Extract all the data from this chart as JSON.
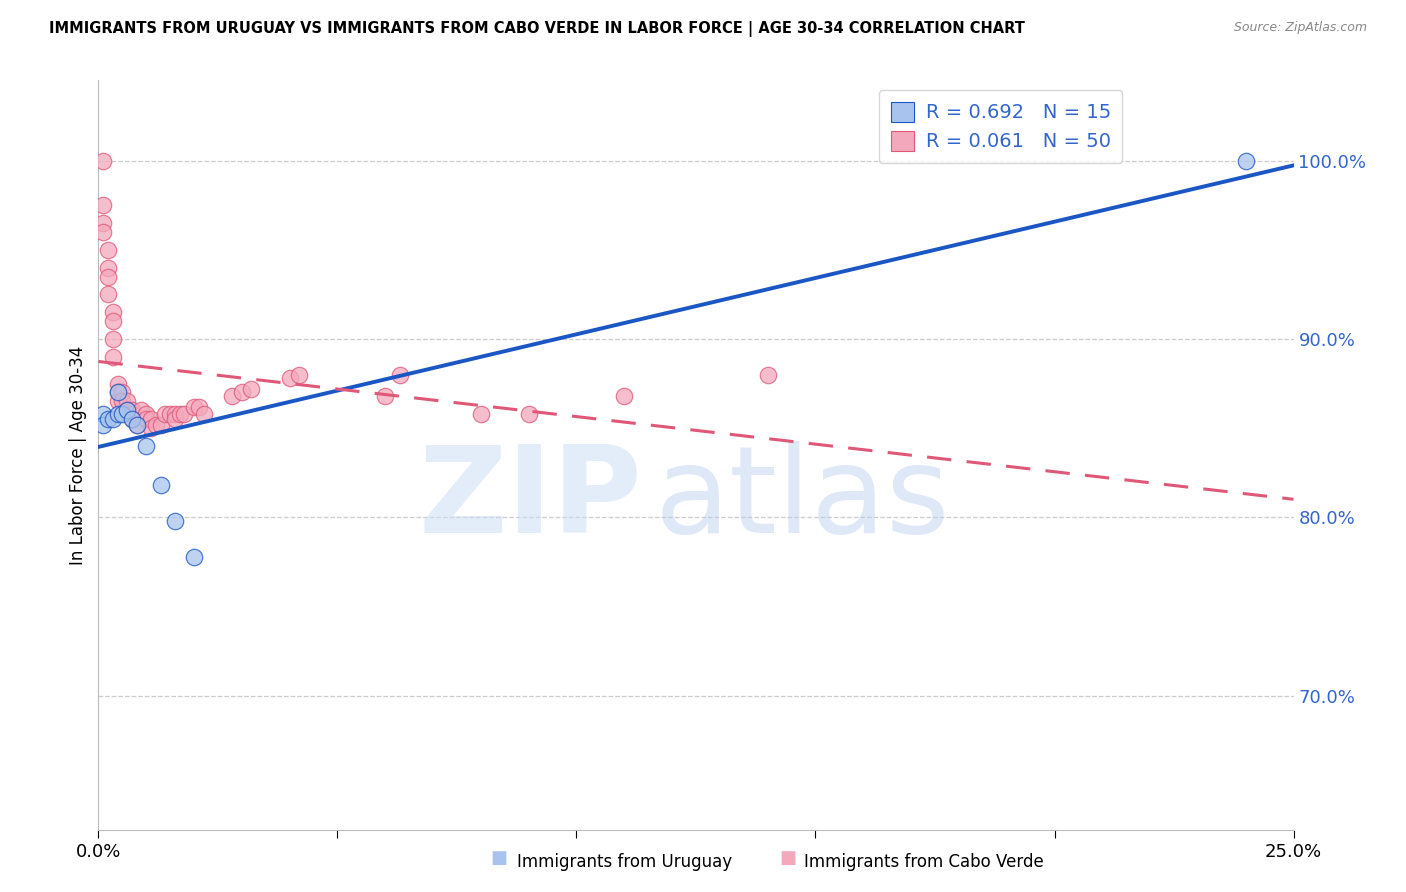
{
  "title": "IMMIGRANTS FROM URUGUAY VS IMMIGRANTS FROM CABO VERDE IN LABOR FORCE | AGE 30-34 CORRELATION CHART",
  "source": "Source: ZipAtlas.com",
  "ylabel": "In Labor Force | Age 30-34",
  "right_yticks": [
    0.7,
    0.8,
    0.9,
    1.0
  ],
  "right_yticklabels": [
    "70.0%",
    "80.0%",
    "90.0%",
    "100.0%"
  ],
  "xmin": 0.0,
  "xmax": 0.25,
  "ymin": 0.625,
  "ymax": 1.045,
  "legend_blue_label": "Immigrants from Uruguay",
  "legend_pink_label": "Immigrants from Cabo Verde",
  "uruguay_color": "#a8c4ee",
  "cabo_verde_color": "#f4a8bc",
  "blue_line_color": "#1a56c4",
  "pink_line_color": "#e05878",
  "grid_color": "#cccccc",
  "right_axis_color": "#3366cc",
  "legend_text_color": "#3366cc",
  "uruguay_x": [
    0.001,
    0.001,
    0.002,
    0.003,
    0.004,
    0.004,
    0.005,
    0.006,
    0.007,
    0.008,
    0.01,
    0.013,
    0.016,
    0.02,
    0.24
  ],
  "uruguay_y": [
    0.858,
    0.852,
    0.855,
    0.855,
    0.87,
    0.858,
    0.858,
    0.86,
    0.855,
    0.852,
    0.84,
    0.818,
    0.798,
    0.778,
    1.0
  ],
  "cabo_x": [
    0.001,
    0.001,
    0.001,
    0.001,
    0.002,
    0.002,
    0.002,
    0.002,
    0.003,
    0.003,
    0.003,
    0.003,
    0.004,
    0.004,
    0.004,
    0.005,
    0.005,
    0.006,
    0.006,
    0.007,
    0.007,
    0.007,
    0.008,
    0.009,
    0.01,
    0.01,
    0.011,
    0.011,
    0.012,
    0.013,
    0.014,
    0.015,
    0.016,
    0.016,
    0.017,
    0.018,
    0.02,
    0.021,
    0.022,
    0.028,
    0.03,
    0.032,
    0.04,
    0.042,
    0.06,
    0.063,
    0.08,
    0.09,
    0.11,
    0.14
  ],
  "cabo_y": [
    1.0,
    0.975,
    0.965,
    0.96,
    0.95,
    0.94,
    0.935,
    0.925,
    0.915,
    0.91,
    0.9,
    0.89,
    0.875,
    0.87,
    0.865,
    0.87,
    0.865,
    0.865,
    0.86,
    0.86,
    0.858,
    0.855,
    0.852,
    0.86,
    0.858,
    0.855,
    0.855,
    0.85,
    0.852,
    0.852,
    0.858,
    0.858,
    0.858,
    0.855,
    0.858,
    0.858,
    0.862,
    0.862,
    0.858,
    0.868,
    0.87,
    0.872,
    0.878,
    0.88,
    0.868,
    0.88,
    0.858,
    0.858,
    0.868,
    0.88
  ]
}
